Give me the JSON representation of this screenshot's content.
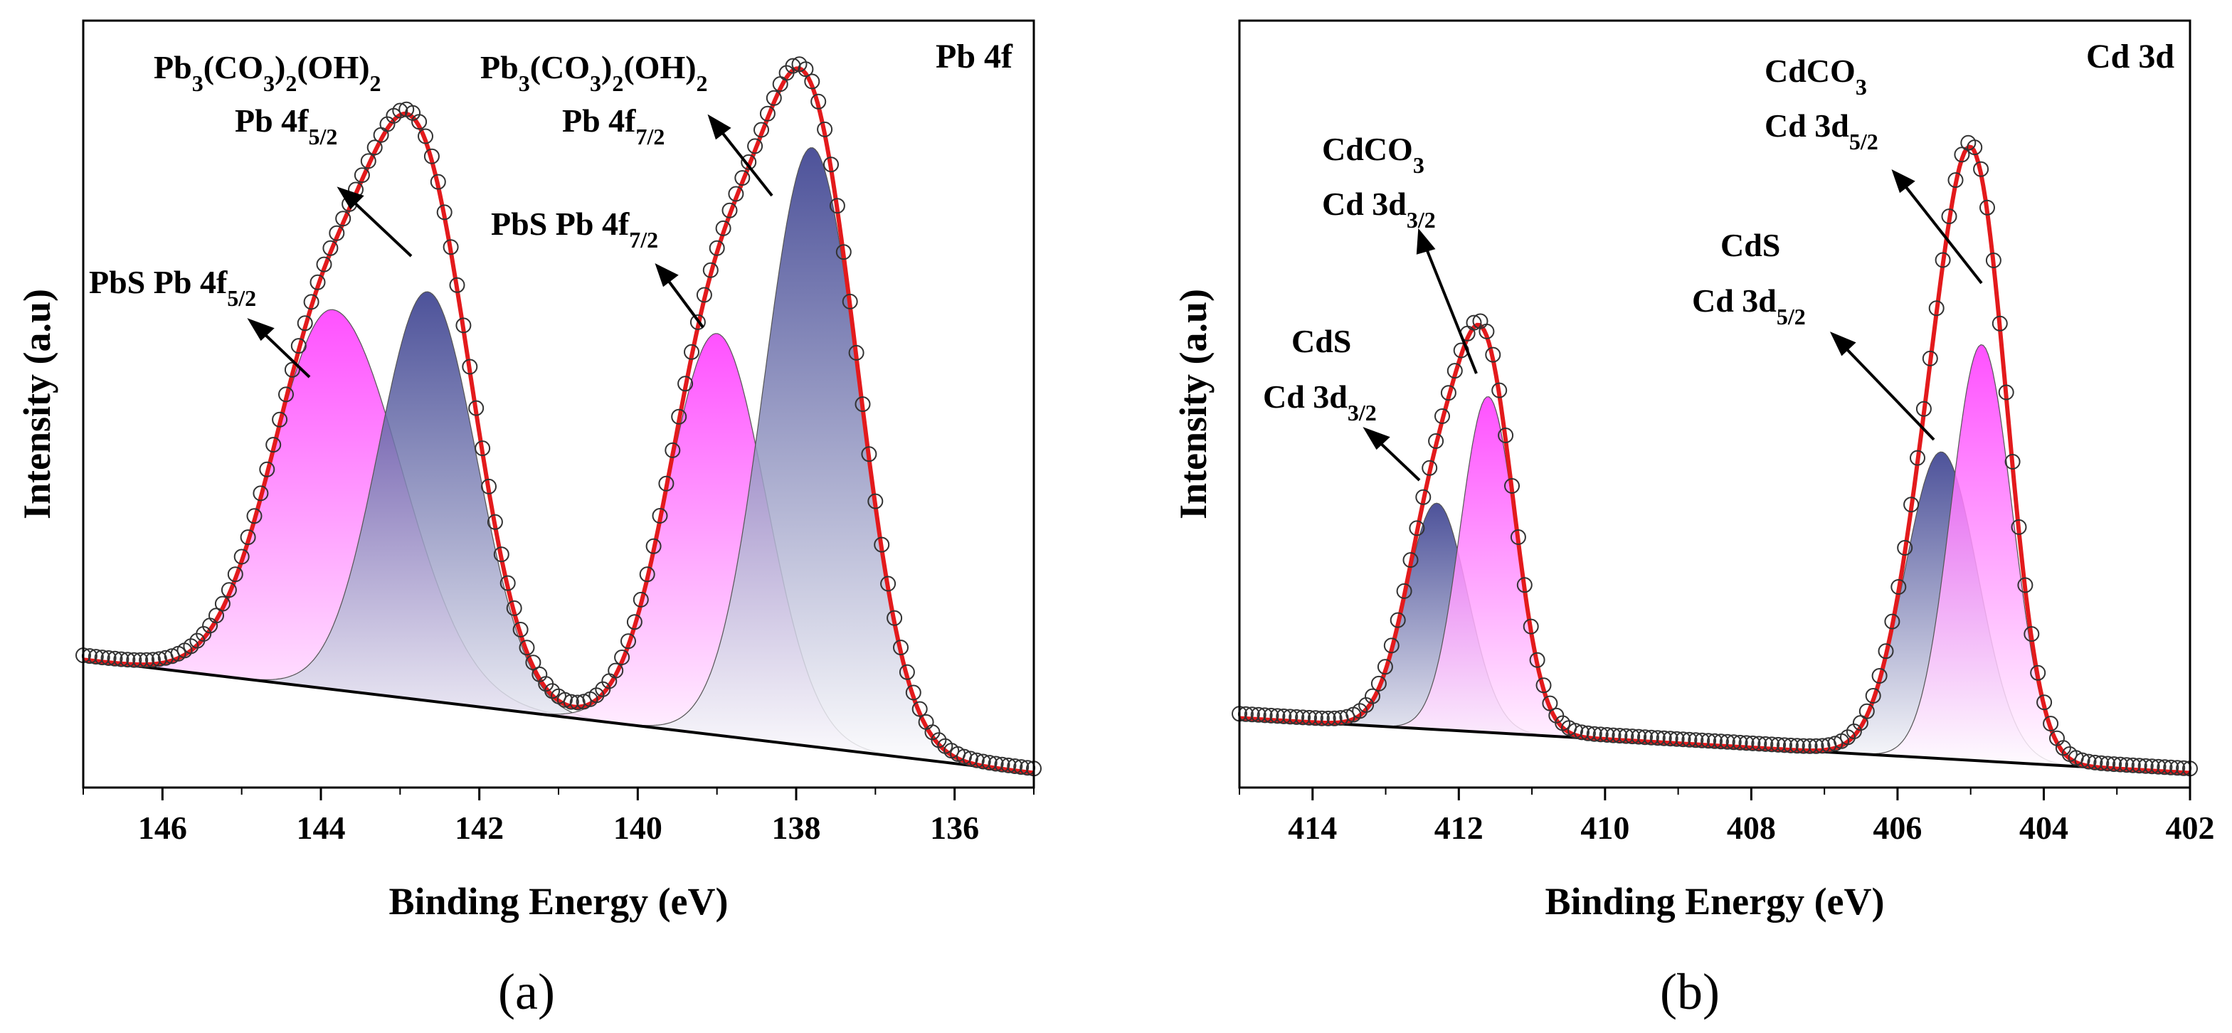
{
  "panel_labels": [
    "(a)",
    "(b)"
  ],
  "colors": {
    "envelope": "#e31a1c",
    "points": "#333333",
    "pink_peak": "#ff40ff",
    "navy_peak": "#3a3f8f",
    "baseline": "#000000"
  },
  "chart_data": [
    {
      "type": "line",
      "panel": "(a)",
      "corner_label": "Pb 4f",
      "xlabel": "Binding Energy (eV)",
      "ylabel": "Intensity (a.u)",
      "x_reversed": true,
      "xlim": [
        147,
        135
      ],
      "ylim": [
        0,
        1.05
      ],
      "x_ticks": [
        146,
        144,
        142,
        140,
        138,
        136
      ],
      "y_ticks_shown": false,
      "baseline": {
        "left": 0.175,
        "right": 0.02
      },
      "series": [
        {
          "color": "pink",
          "center": 143.85,
          "height": 0.52,
          "sigma": 0.75,
          "wideRight": true
        },
        {
          "color": "navy",
          "center": 142.65,
          "height": 0.56,
          "sigma": 0.62
        },
        {
          "color": "pink",
          "center": 139.0,
          "height": 0.55,
          "sigma": 0.62
        },
        {
          "color": "navy",
          "center": 137.8,
          "height": 0.82,
          "sigma": 0.6
        }
      ],
      "annotations": [
        {
          "base": "Pb",
          "parts": [
            [
              "3",
              "sub"
            ],
            [
              "(CO",
              ""
            ],
            [
              "3",
              "sub"
            ],
            [
              ")",
              ""
            ],
            [
              "2",
              "sub"
            ],
            [
              "(OH)",
              ""
            ],
            [
              "2",
              "sub"
            ]
          ],
          "line": 0
        },
        {
          "base": "Pb 4f",
          "parts": [
            [
              "5/2",
              "sub"
            ]
          ],
          "line": 1
        },
        {
          "base": "Pb",
          "parts": [
            [
              "3",
              "sub"
            ],
            [
              "(CO",
              ""
            ],
            [
              "3",
              "sub"
            ],
            [
              ")",
              ""
            ],
            [
              "2",
              "sub"
            ],
            [
              "(OH)",
              ""
            ],
            [
              "2",
              "sub"
            ]
          ],
          "line": 0
        },
        {
          "base": "Pb 4f",
          "parts": [
            [
              "7/2",
              "sub"
            ]
          ],
          "line": 1
        },
        {
          "base": "PbS Pb 4f",
          "parts": [
            [
              "7/2",
              "sub"
            ]
          ],
          "line": 0
        },
        {
          "base": "PbS Pb 4f",
          "parts": [
            [
              "5/2",
              "sub"
            ]
          ],
          "line": 0
        }
      ]
    },
    {
      "type": "line",
      "panel": "(b)",
      "corner_label": "Cd 3d",
      "xlabel": "Binding Energy (eV)",
      "ylabel": "Intensity (a.u)",
      "x_reversed": true,
      "xlim": [
        415,
        402
      ],
      "ylim": [
        0,
        1.05
      ],
      "x_ticks": [
        414,
        412,
        410,
        408,
        406,
        404,
        402
      ],
      "y_ticks_shown": false,
      "baseline": {
        "left": 0.095,
        "right": 0.02
      },
      "series": [
        {
          "color": "navy",
          "center": 412.3,
          "height": 0.31,
          "sigma": 0.42
        },
        {
          "color": "pink",
          "center": 411.6,
          "height": 0.46,
          "sigma": 0.38
        },
        {
          "color": "navy",
          "center": 405.4,
          "height": 0.42,
          "sigma": 0.5
        },
        {
          "color": "pink",
          "center": 404.85,
          "height": 0.57,
          "sigma": 0.42
        }
      ],
      "annotations": [
        {
          "text": "CdCO",
          "parts": [
            [
              "3",
              "sub"
            ]
          ]
        },
        {
          "text": "Cd 3d",
          "parts": [
            [
              "5/2",
              "sub"
            ]
          ]
        },
        {
          "text": "CdCO",
          "parts": [
            [
              "3",
              "sub"
            ]
          ]
        },
        {
          "text": "Cd 3d",
          "parts": [
            [
              "3/2",
              "sub"
            ]
          ]
        },
        {
          "text": "CdS",
          "parts": []
        },
        {
          "text": "Cd 3d",
          "parts": [
            [
              "5/2",
              "sub"
            ]
          ]
        },
        {
          "text": "CdS",
          "parts": []
        },
        {
          "text": "Cd 3d",
          "parts": [
            [
              "3/2",
              "sub"
            ]
          ]
        }
      ]
    }
  ]
}
